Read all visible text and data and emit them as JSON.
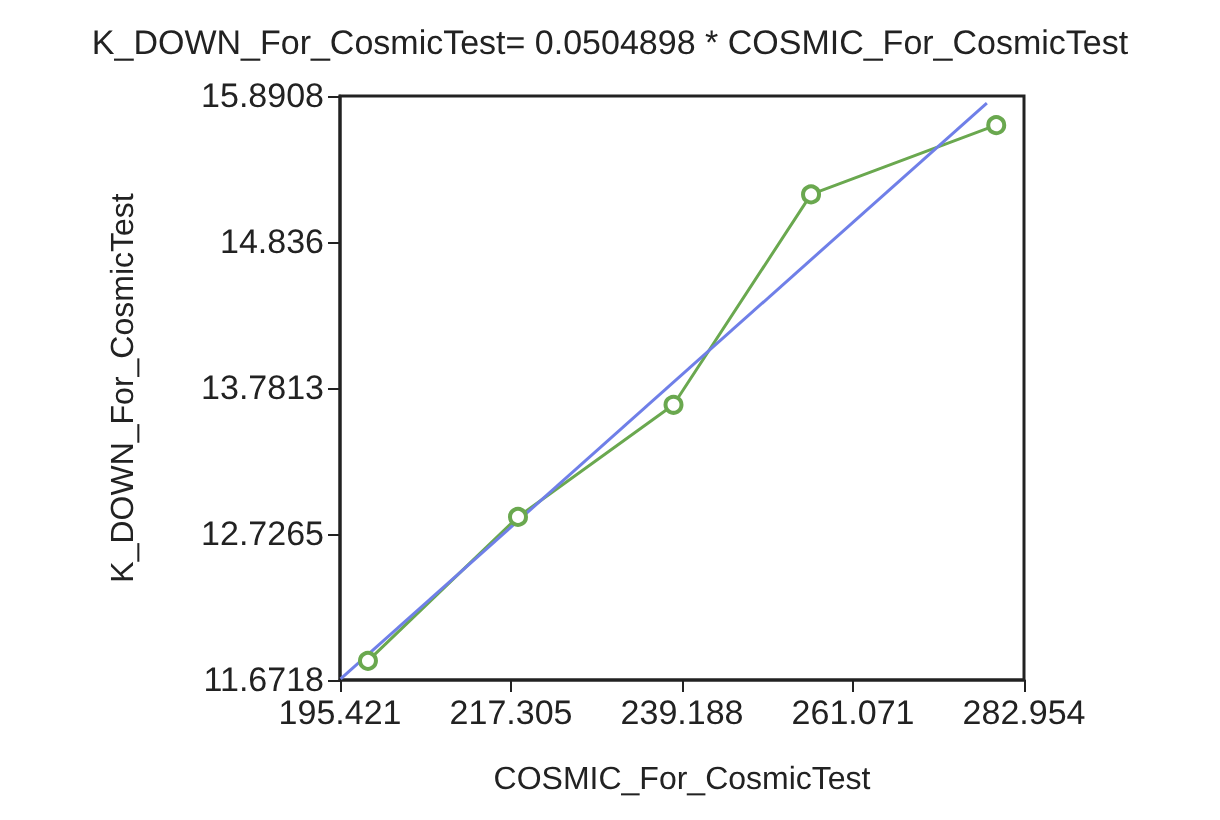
{
  "chart_data": {
    "type": "line",
    "title": "K_DOWN_For_CosmicTest= 0.0504898 * COSMIC_For_CosmicTest",
    "xlabel": "COSMIC_For_CosmicTest",
    "ylabel": "K_DOWN_For_CosmicTest",
    "series": [
      {
        "color": "#6aa84f",
        "marker": "circle",
        "x": [
          199.0,
          218.2,
          238.1,
          255.7,
          279.4
        ],
        "values": [
          11.81,
          12.85,
          13.66,
          15.18,
          15.68
        ]
      },
      {
        "color": "#6f7fe8",
        "marker": "none",
        "x": [
          195.5,
          278.2
        ],
        "values": [
          11.68,
          15.84
        ]
      }
    ],
    "xlim": [
      195.421,
      282.954
    ],
    "xticks": [
      195.421,
      217.305,
      239.188,
      261.071,
      282.954
    ],
    "ylim": [
      11.6718,
      15.8908
    ],
    "yticks": [
      11.6718,
      12.7265,
      13.7813,
      14.836,
      15.8908
    ],
    "grid": false
  }
}
